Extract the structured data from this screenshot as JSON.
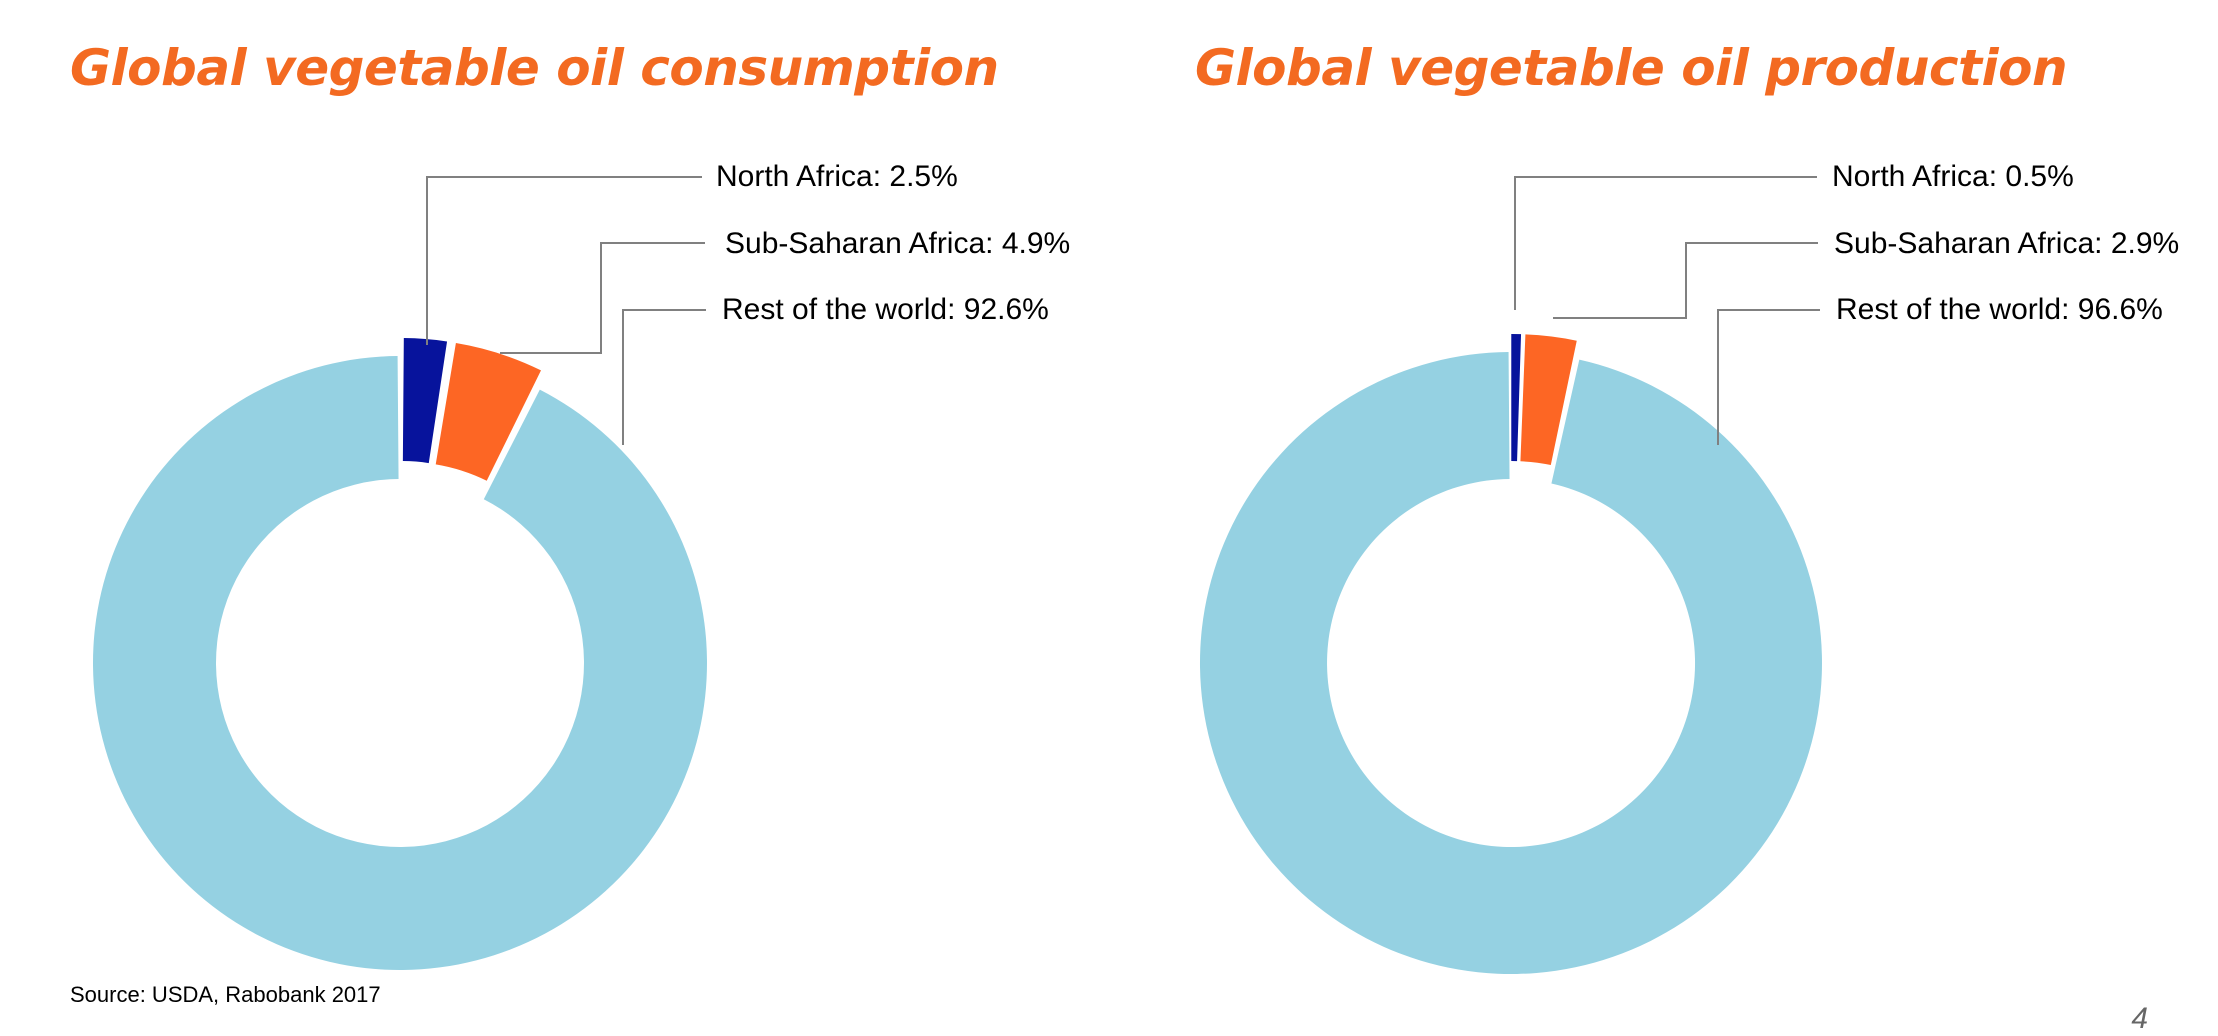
{
  "slide": {
    "source": "Source: USDA, Rabobank 2017",
    "page_number": "4"
  },
  "colors": {
    "title": "#f36a21",
    "north_africa": "#07139c",
    "sub_saharan_africa": "#fd6624",
    "rest_of_world": "#95d1e2",
    "leader_line": "#808080"
  },
  "chart_data": [
    {
      "type": "pie",
      "variant": "donut",
      "title": "Global vegetable oil consumption",
      "categories": [
        "North Africa",
        "Sub-Saharan Africa",
        "Rest of the world"
      ],
      "values": [
        2.5,
        4.9,
        92.6
      ],
      "unit": "%",
      "labels": [
        "North Africa: 2.5%",
        "Sub-Saharan Africa: 4.9%",
        "Rest of the world: 92.6%"
      ],
      "exploded": [
        "North Africa",
        "Sub-Saharan Africa"
      ]
    },
    {
      "type": "pie",
      "variant": "donut",
      "title": "Global vegetable oil production",
      "categories": [
        "North Africa",
        "Sub-Saharan Africa",
        "Rest of the world"
      ],
      "values": [
        0.5,
        2.9,
        96.6
      ],
      "unit": "%",
      "labels": [
        "North Africa: 0.5%",
        "Sub-Saharan Africa: 2.9%",
        "Rest of the world: 96.6%"
      ],
      "exploded": [
        "North Africa",
        "Sub-Saharan Africa"
      ]
    }
  ]
}
